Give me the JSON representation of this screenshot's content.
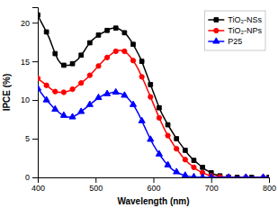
{
  "chart_data": {
    "type": "line",
    "xlabel": "Wavelength (nm)",
    "ylabel": "IPCE (%)",
    "xlim": [
      400,
      800
    ],
    "ylim": [
      0,
      22
    ],
    "xticks": [
      400,
      500,
      600,
      700,
      800
    ],
    "yticks": [
      0,
      5,
      10,
      15,
      20
    ],
    "grid": false,
    "legend": "upper right",
    "series": [
      {
        "name": "TiO₂-NSs",
        "color": "black",
        "marker": "square",
        "x": [
          400,
          405,
          410,
          415,
          420,
          425,
          430,
          435,
          440,
          445,
          450,
          455,
          460,
          465,
          470,
          475,
          480,
          485,
          490,
          495,
          500,
          505,
          510,
          515,
          520,
          525,
          530,
          535,
          540,
          545,
          550,
          555,
          560,
          565,
          570,
          575,
          580,
          585,
          590,
          595,
          600,
          605,
          610,
          615,
          620,
          625,
          630,
          635,
          640,
          645,
          650,
          655,
          660,
          665,
          670,
          675,
          680,
          685,
          690,
          695,
          700,
          705,
          710,
          715,
          720,
          725,
          730,
          735,
          740,
          745,
          750,
          760,
          770,
          780,
          790,
          800
        ],
        "values": [
          21.0,
          20.2,
          19.5,
          18.8,
          18.0,
          17.0,
          16.0,
          15.2,
          14.7,
          14.5,
          14.5,
          14.5,
          14.7,
          15.0,
          15.3,
          15.8,
          16.3,
          16.9,
          17.4,
          17.8,
          18.1,
          18.4,
          18.6,
          18.8,
          19.0,
          19.2,
          19.3,
          19.3,
          19.2,
          19.0,
          18.7,
          18.3,
          17.8,
          17.2,
          16.5,
          15.8,
          15.0,
          14.0,
          13.0,
          12.0,
          11.0,
          10.0,
          9.0,
          8.2,
          7.5,
          6.8,
          6.2,
          5.6,
          5.0,
          4.5,
          4.0,
          3.5,
          3.0,
          2.6,
          2.2,
          1.9,
          1.6,
          1.3,
          1.0,
          0.8,
          0.6,
          0.4,
          0.3,
          0.2,
          0.1,
          0.07,
          0.04,
          0.02,
          0.01,
          0.0,
          0.0,
          0.0,
          0.0,
          0.0,
          0.0,
          0.0
        ]
      },
      {
        "name": "TiO₂-NPs",
        "color": "red",
        "marker": "circle",
        "x": [
          400,
          405,
          410,
          415,
          420,
          425,
          430,
          435,
          440,
          445,
          450,
          455,
          460,
          465,
          470,
          475,
          480,
          485,
          490,
          495,
          500,
          505,
          510,
          515,
          520,
          525,
          530,
          535,
          540,
          545,
          550,
          555,
          560,
          565,
          570,
          575,
          580,
          585,
          590,
          595,
          600,
          605,
          610,
          615,
          620,
          625,
          630,
          635,
          640,
          645,
          650,
          655,
          660,
          665,
          670,
          675,
          680,
          685,
          690,
          695,
          700,
          705,
          710,
          715,
          720,
          725,
          730,
          740,
          750,
          760,
          770,
          780,
          790,
          800
        ],
        "values": [
          12.8,
          12.5,
          12.2,
          11.9,
          11.6,
          11.3,
          11.1,
          11.0,
          11.0,
          11.0,
          11.1,
          11.2,
          11.4,
          11.6,
          11.9,
          12.2,
          12.5,
          12.8,
          13.2,
          13.6,
          14.0,
          14.4,
          14.8,
          15.2,
          15.5,
          15.8,
          16.1,
          16.3,
          16.4,
          16.4,
          16.3,
          16.0,
          15.6,
          15.1,
          14.5,
          13.8,
          13.0,
          12.2,
          11.3,
          10.4,
          9.5,
          8.6,
          7.7,
          6.9,
          6.1,
          5.4,
          4.8,
          4.2,
          3.7,
          3.2,
          2.7,
          2.3,
          1.9,
          1.6,
          1.3,
          1.0,
          0.8,
          0.6,
          0.45,
          0.3,
          0.2,
          0.13,
          0.08,
          0.05,
          0.03,
          0.01,
          0.0,
          0.0,
          0.0,
          0.0,
          0.0,
          0.0,
          0.0,
          0.0
        ]
      },
      {
        "name": "P25",
        "color": "blue",
        "marker": "triangle",
        "x": [
          400,
          405,
          410,
          415,
          420,
          425,
          430,
          435,
          440,
          445,
          450,
          455,
          460,
          465,
          470,
          475,
          480,
          485,
          490,
          495,
          500,
          505,
          510,
          515,
          520,
          525,
          530,
          535,
          540,
          545,
          550,
          555,
          560,
          565,
          570,
          575,
          580,
          585,
          590,
          595,
          600,
          605,
          610,
          615,
          620,
          625,
          630,
          635,
          640,
          645,
          650,
          655,
          660,
          665,
          670,
          675,
          680,
          685,
          690,
          695,
          700,
          710,
          720,
          730,
          740,
          750,
          760,
          770,
          780,
          790,
          800
        ],
        "values": [
          11.5,
          11.0,
          10.5,
          10.0,
          9.6,
          9.2,
          8.8,
          8.5,
          8.2,
          8.0,
          7.8,
          7.8,
          7.8,
          8.0,
          8.2,
          8.5,
          8.8,
          9.1,
          9.4,
          9.7,
          10.0,
          10.3,
          10.5,
          10.7,
          10.8,
          10.9,
          11.0,
          11.0,
          10.9,
          10.8,
          10.6,
          10.3,
          9.9,
          9.4,
          8.8,
          8.1,
          7.3,
          6.5,
          5.7,
          4.9,
          4.2,
          3.6,
          3.0,
          2.5,
          2.0,
          1.6,
          1.2,
          0.9,
          0.7,
          0.5,
          0.35,
          0.25,
          0.16,
          0.1,
          0.06,
          0.04,
          0.02,
          0.01,
          0.0,
          0.0,
          0.0,
          0.0,
          0.0,
          0.0,
          0.0,
          0.0,
          0.0,
          0.0,
          0.0,
          0.0,
          0.0
        ]
      }
    ]
  }
}
